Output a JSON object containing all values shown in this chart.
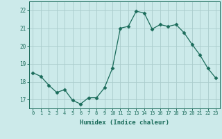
{
  "x": [
    0,
    1,
    2,
    3,
    4,
    5,
    6,
    7,
    8,
    9,
    10,
    11,
    12,
    13,
    14,
    15,
    16,
    17,
    18,
    19,
    20,
    21,
    22,
    23
  ],
  "y": [
    18.5,
    18.3,
    17.8,
    17.4,
    17.55,
    16.95,
    16.75,
    17.1,
    17.1,
    17.65,
    18.75,
    21.0,
    21.1,
    21.95,
    21.85,
    20.95,
    21.2,
    21.1,
    21.2,
    20.75,
    20.1,
    19.5,
    18.75,
    18.2
  ],
  "line_color": "#1a6b5a",
  "marker": "D",
  "markersize": 2.5,
  "bg_color": "#cceaea",
  "grid_color": "#aacccc",
  "tick_color": "#1a6b5a",
  "label_color": "#1a6b5a",
  "xlabel": "Humidex (Indice chaleur)",
  "ylim": [
    16.5,
    22.5
  ],
  "yticks": [
    17,
    18,
    19,
    20,
    21,
    22
  ],
  "xticks": [
    0,
    1,
    2,
    3,
    4,
    5,
    6,
    7,
    8,
    9,
    10,
    11,
    12,
    13,
    14,
    15,
    16,
    17,
    18,
    19,
    20,
    21,
    22,
    23
  ]
}
